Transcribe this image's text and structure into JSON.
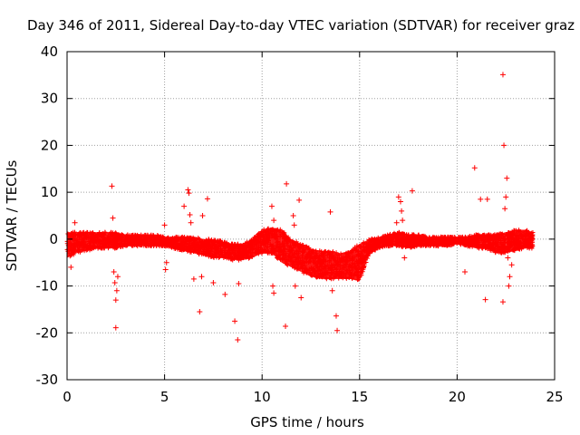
{
  "chart_data": {
    "type": "scatter",
    "title": "Day 346 of 2011, Sidereal Day-to-day VTEC variation (SDTVAR) for receiver graz",
    "xlabel": "GPS time / hours",
    "ylabel": "SDTVAR / TECUs",
    "xlim": [
      0,
      25
    ],
    "ylim": [
      -30,
      40
    ],
    "xticks": [
      0,
      5,
      10,
      15,
      20,
      25
    ],
    "yticks": [
      -30,
      -20,
      -10,
      0,
      10,
      20,
      30,
      40
    ],
    "grid": true,
    "marker": "+",
    "color": "#ff0000",
    "band": [
      [
        0.0,
        -4,
        1.5
      ],
      [
        0.5,
        -3,
        1.5
      ],
      [
        1.0,
        -2.5,
        1.5
      ],
      [
        1.5,
        -2,
        1.5
      ],
      [
        2.0,
        -2,
        1.5
      ],
      [
        2.5,
        -2,
        1.5
      ],
      [
        3.0,
        -1.5,
        1
      ],
      [
        3.5,
        -1.5,
        1
      ],
      [
        4.0,
        -1.5,
        1
      ],
      [
        4.5,
        -1.5,
        1
      ],
      [
        5.0,
        -1.5,
        0.5
      ],
      [
        5.5,
        -2,
        0.5
      ],
      [
        6.0,
        -2.5,
        0.5
      ],
      [
        6.5,
        -3,
        0.5
      ],
      [
        7.0,
        -3.5,
        0
      ],
      [
        7.5,
        -4,
        0
      ],
      [
        8.0,
        -4,
        -0.5
      ],
      [
        8.5,
        -4.5,
        -1
      ],
      [
        9.0,
        -4.5,
        -1
      ],
      [
        9.5,
        -4,
        0
      ],
      [
        10.0,
        -3,
        2
      ],
      [
        10.5,
        -3,
        2.5
      ],
      [
        11.0,
        -5,
        2
      ],
      [
        11.5,
        -6,
        0
      ],
      [
        12.0,
        -7,
        -1
      ],
      [
        12.5,
        -8,
        -2
      ],
      [
        13.0,
        -8.5,
        -2.5
      ],
      [
        13.5,
        -8.5,
        -2.5
      ],
      [
        14.0,
        -8.5,
        -3
      ],
      [
        14.5,
        -8.5,
        -2.5
      ],
      [
        15.0,
        -9,
        -1
      ],
      [
        15.5,
        -3,
        0
      ],
      [
        16.0,
        -2,
        0.5
      ],
      [
        16.5,
        -1.5,
        1
      ],
      [
        17.0,
        -1.5,
        1.5
      ],
      [
        17.5,
        -2,
        1
      ],
      [
        18.0,
        -1.5,
        1
      ],
      [
        18.5,
        -1.5,
        0.5
      ],
      [
        19.0,
        -1.5,
        0.5
      ],
      [
        19.5,
        -1.5,
        0.5
      ],
      [
        20.0,
        -1,
        0.5
      ],
      [
        20.5,
        -1.5,
        0.5
      ],
      [
        21.0,
        -2,
        1
      ],
      [
        21.5,
        -2,
        1
      ],
      [
        22.0,
        -3,
        1
      ],
      [
        22.5,
        -3,
        1.5
      ],
      [
        23.0,
        -2.5,
        2
      ],
      [
        23.5,
        -2,
        2
      ],
      [
        23.9,
        -2,
        1.5
      ]
    ],
    "outliers": [
      [
        0.2,
        -6
      ],
      [
        0.4,
        3.5
      ],
      [
        2.3,
        11.3
      ],
      [
        2.35,
        4.5
      ],
      [
        2.4,
        -7
      ],
      [
        2.45,
        -9.3
      ],
      [
        2.5,
        -13
      ],
      [
        2.55,
        -11
      ],
      [
        2.5,
        -18.9
      ],
      [
        2.6,
        -8
      ],
      [
        5.0,
        3
      ],
      [
        5.1,
        -5
      ],
      [
        5.05,
        -6.5
      ],
      [
        6.0,
        7
      ],
      [
        6.2,
        10.5
      ],
      [
        6.25,
        9.8
      ],
      [
        6.3,
        5.2
      ],
      [
        6.35,
        3.5
      ],
      [
        6.5,
        -8.5
      ],
      [
        6.8,
        -15.5
      ],
      [
        6.9,
        -8
      ],
      [
        6.95,
        5
      ],
      [
        7.2,
        8.6
      ],
      [
        7.5,
        -9.3
      ],
      [
        8.1,
        -11.8
      ],
      [
        8.6,
        -17.5
      ],
      [
        8.75,
        -21.5
      ],
      [
        8.8,
        -9.5
      ],
      [
        10.5,
        7
      ],
      [
        10.6,
        4
      ],
      [
        10.55,
        -10
      ],
      [
        10.6,
        -11.5
      ],
      [
        11.2,
        -18.6
      ],
      [
        11.25,
        11.8
      ],
      [
        11.6,
        5
      ],
      [
        11.65,
        3
      ],
      [
        11.7,
        -10
      ],
      [
        11.9,
        8.3
      ],
      [
        12.0,
        -12.5
      ],
      [
        13.5,
        5.8
      ],
      [
        13.6,
        -11
      ],
      [
        13.8,
        -16.4
      ],
      [
        13.85,
        -19.5
      ],
      [
        16.9,
        3.5
      ],
      [
        17.0,
        9
      ],
      [
        17.1,
        8
      ],
      [
        17.15,
        6
      ],
      [
        17.2,
        4
      ],
      [
        17.3,
        -4
      ],
      [
        17.7,
        10.3
      ],
      [
        20.4,
        -7
      ],
      [
        20.9,
        15.2
      ],
      [
        21.2,
        8.5
      ],
      [
        21.45,
        -12.9
      ],
      [
        21.55,
        8.5
      ],
      [
        22.35,
        35.1
      ],
      [
        22.4,
        20
      ],
      [
        22.5,
        9
      ],
      [
        22.45,
        6.5
      ],
      [
        22.55,
        13
      ],
      [
        22.6,
        -4
      ],
      [
        22.35,
        -13.4
      ],
      [
        22.7,
        -8
      ],
      [
        22.8,
        -5.5
      ],
      [
        22.65,
        -10
      ]
    ]
  }
}
